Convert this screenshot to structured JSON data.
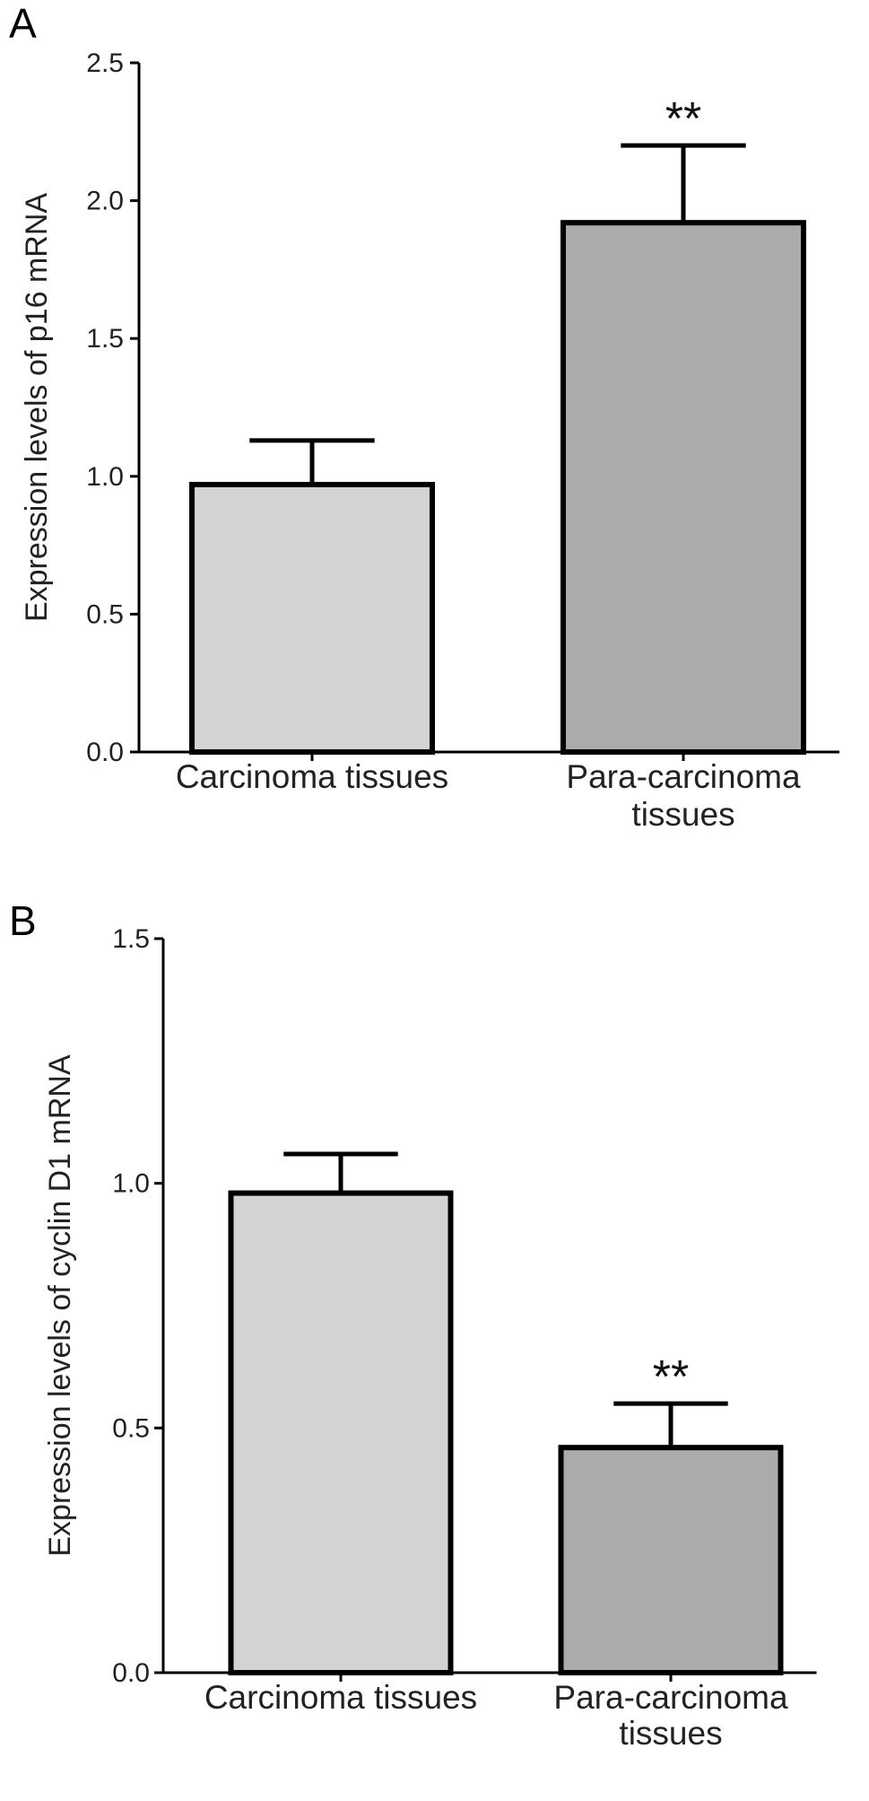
{
  "chart_data": [
    {
      "type": "bar",
      "panel_label": "A",
      "ylabel": "Expression levels of p16 mRNA",
      "xlabel": "",
      "ylim": [
        0,
        2.5
      ],
      "yticks": [
        "0.0",
        "0.5",
        "1.0",
        "1.5",
        "2.0",
        "2.5"
      ],
      "ytick_values": [
        0,
        0.5,
        1.0,
        1.5,
        2.0,
        2.5
      ],
      "grid": false,
      "categories": [
        {
          "lines": [
            "Carcinoma tissues"
          ],
          "value": 0.97,
          "error": 0.16,
          "color": "#d3d3d3",
          "annotation": ""
        },
        {
          "lines": [
            "Para-carcinoma",
            "tissues"
          ],
          "value": 1.92,
          "error": 0.28,
          "color": "#ababab",
          "annotation": "**"
        }
      ]
    },
    {
      "type": "bar",
      "panel_label": "B",
      "ylabel": "Expression levels of cyclin D1 mRNA",
      "xlabel": "",
      "ylim": [
        0,
        1.5
      ],
      "yticks": [
        "0.0",
        "0.5",
        "1.0",
        "1.5"
      ],
      "ytick_values": [
        0,
        0.5,
        1.0,
        1.5
      ],
      "grid": false,
      "categories": [
        {
          "lines": [
            "Carcinoma tissues"
          ],
          "value": 0.98,
          "error": 0.08,
          "color": "#d3d3d3",
          "annotation": ""
        },
        {
          "lines": [
            "Para-carcinoma",
            "tissues"
          ],
          "value": 0.46,
          "error": 0.09,
          "color": "#ababab",
          "annotation": "**"
        }
      ]
    }
  ]
}
